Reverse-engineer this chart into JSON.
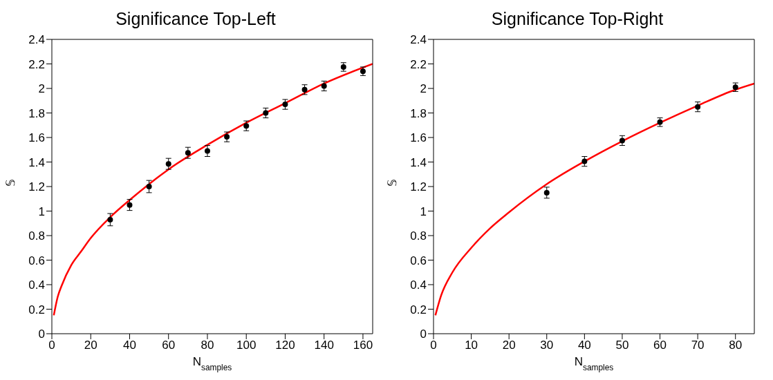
{
  "chart_data": [
    {
      "type": "scatter",
      "title": "Significance Top-Left",
      "xlabel": "N$_{samples}$",
      "ylabel": "𝕊",
      "xlim": [
        0,
        165
      ],
      "xticks": [
        0,
        20,
        40,
        60,
        80,
        100,
        120,
        140,
        160
      ],
      "ylim": [
        0,
        2.4
      ],
      "yticks": [
        0,
        0.2,
        0.4,
        0.6,
        0.8,
        1,
        1.2,
        1.4,
        1.6,
        1.8,
        2,
        2.2,
        2.4
      ],
      "grid": false,
      "legend": false,
      "series": [
        {
          "marker": "circle",
          "color": "#000000",
          "x": [
            30,
            40,
            50,
            60,
            70,
            80,
            90,
            100,
            110,
            120,
            130,
            140,
            150,
            160
          ],
          "values": [
            0.93,
            1.05,
            1.2,
            1.385,
            1.475,
            1.49,
            1.605,
            1.695,
            1.8,
            1.87,
            1.99,
            2.02,
            2.175,
            2.14
          ],
          "errors": [
            0.05,
            0.045,
            0.05,
            0.045,
            0.045,
            0.045,
            0.04,
            0.04,
            0.04,
            0.04,
            0.04,
            0.04,
            0.035,
            0.035
          ]
        },
        {
          "type": "line",
          "color": "#ff0000",
          "x": [
            1,
            3,
            5,
            10,
            15,
            20,
            30,
            40,
            50,
            60,
            80,
            100,
            120,
            140,
            165
          ],
          "values": [
            0.15,
            0.3,
            0.39,
            0.56,
            0.67,
            0.78,
            0.95,
            1.09,
            1.22,
            1.34,
            1.54,
            1.72,
            1.88,
            2.04,
            2.2
          ]
        }
      ]
    },
    {
      "type": "scatter",
      "title": "Significance Top-Right",
      "xlabel": "N$_{samples}$",
      "ylabel": "𝕊",
      "xlim": [
        0,
        85
      ],
      "xticks": [
        0,
        10,
        20,
        30,
        40,
        50,
        60,
        70,
        80
      ],
      "ylim": [
        0,
        2.4
      ],
      "yticks": [
        0,
        0.2,
        0.4,
        0.6,
        0.8,
        1,
        1.2,
        1.4,
        1.6,
        1.8,
        2,
        2.2,
        2.4
      ],
      "grid": false,
      "legend": false,
      "series": [
        {
          "marker": "circle",
          "color": "#000000",
          "x": [
            30,
            40,
            50,
            60,
            70,
            80
          ],
          "values": [
            1.15,
            1.405,
            1.575,
            1.725,
            1.85,
            2.01
          ],
          "errors": [
            0.045,
            0.04,
            0.04,
            0.035,
            0.04,
            0.035
          ]
        },
        {
          "type": "line",
          "color": "#ff0000",
          "x": [
            0.5,
            2,
            5,
            10,
            15,
            20,
            30,
            40,
            50,
            60,
            70,
            80,
            85
          ],
          "values": [
            0.15,
            0.31,
            0.5,
            0.7,
            0.86,
            0.99,
            1.22,
            1.405,
            1.57,
            1.72,
            1.86,
            1.99,
            2.04
          ]
        }
      ]
    }
  ]
}
